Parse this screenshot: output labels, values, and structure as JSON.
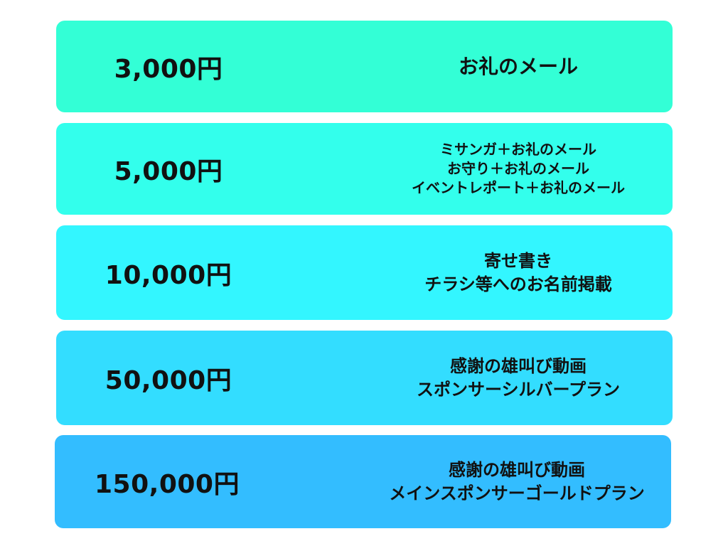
{
  "tiers": [
    {
      "price": "3,000円",
      "rewards": [
        "お礼のメール"
      ],
      "color": "#33FFD6"
    },
    {
      "price": "5,000円",
      "rewards": [
        "ミサンガ＋お礼のメール",
        "お守り＋お礼のメール",
        "イベントレポート＋お礼のメール"
      ],
      "color": "#33FFEC"
    },
    {
      "price": "10,000円",
      "rewards": [
        "寄せ書き",
        "チラシ等へのお名前掲載"
      ],
      "color": "#33F6FF"
    },
    {
      "price": "50,000円",
      "rewards": [
        "感謝の雄叫び動画",
        "スポンサーシルバープラン"
      ],
      "color": "#33DDFF"
    },
    {
      "price": "150,000円",
      "rewards": [
        "感謝の雄叫び動画",
        "メインスポンサーゴールドプラン"
      ],
      "color": "#33BDFF"
    }
  ]
}
